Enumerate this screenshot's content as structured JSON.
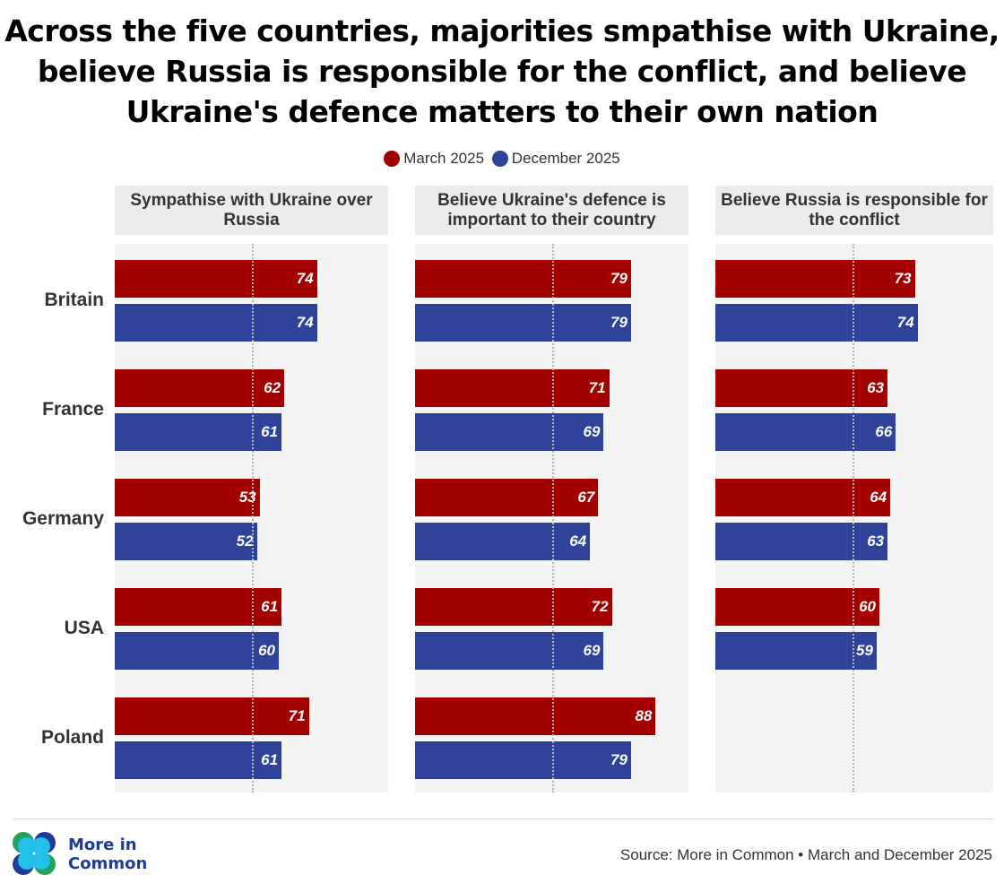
{
  "title": "Across the five countries, majorities smpathise with Ukraine, believe Russia is responsible for the conflict, and believe Ukraine's defence matters to their own nation",
  "legend": [
    {
      "label": "March 2025",
      "color": "#a30000"
    },
    {
      "label": "December 2025",
      "color": "#2e4399"
    }
  ],
  "chart_data": [
    {
      "type": "bar",
      "orientation": "horizontal",
      "title": "Sympathise with Ukraine over Russia",
      "categories": [
        "Britain",
        "France",
        "Germany",
        "USA",
        "Poland"
      ],
      "xlim": [
        0,
        100
      ],
      "reference_line": 50,
      "series": [
        {
          "name": "March 2025",
          "values": [
            74,
            62,
            53,
            61,
            71
          ]
        },
        {
          "name": "December 2025",
          "values": [
            74,
            61,
            52,
            60,
            61
          ]
        }
      ]
    },
    {
      "type": "bar",
      "orientation": "horizontal",
      "title": "Believe Ukraine's defence is important to their country",
      "categories": [
        "Britain",
        "France",
        "Germany",
        "USA",
        "Poland"
      ],
      "xlim": [
        0,
        100
      ],
      "reference_line": 50,
      "series": [
        {
          "name": "March 2025",
          "values": [
            79,
            71,
            67,
            72,
            88
          ]
        },
        {
          "name": "December 2025",
          "values": [
            79,
            69,
            64,
            69,
            79
          ]
        }
      ]
    },
    {
      "type": "bar",
      "orientation": "horizontal",
      "title": "Believe Russia is responsible for the conflict",
      "categories": [
        "Britain",
        "France",
        "Germany",
        "USA",
        "Poland"
      ],
      "xlim": [
        0,
        100
      ],
      "reference_line": 50,
      "series": [
        {
          "name": "March 2025",
          "values": [
            73,
            63,
            64,
            60,
            null
          ]
        },
        {
          "name": "December 2025",
          "values": [
            74,
            66,
            63,
            59,
            null
          ]
        }
      ]
    }
  ],
  "footer": {
    "logo_text": "More in Common",
    "logo_line1": "More in",
    "logo_line2": "Common",
    "source": "Source: More in Common • March and December 2025"
  }
}
